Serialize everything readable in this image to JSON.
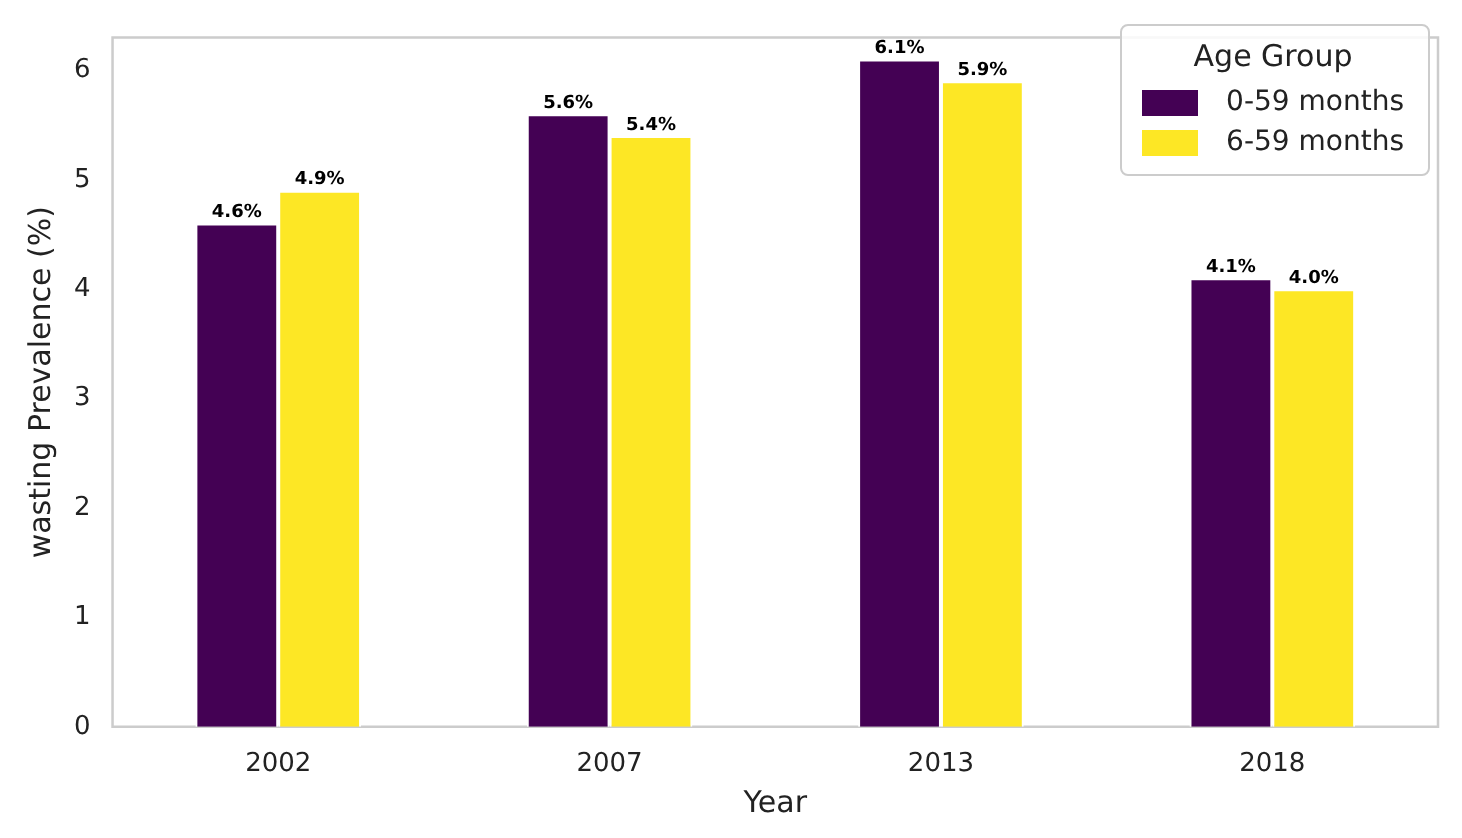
{
  "chart_data": {
    "type": "bar",
    "xlabel": "Year",
    "ylabel": "wasting Prevalence (%)",
    "legend_title": "Age Group",
    "categories": [
      "2002",
      "2007",
      "2013",
      "2018"
    ],
    "series": [
      {
        "name": "0-59 months",
        "color": "#440154",
        "values": [
          4.6,
          5.6,
          6.1,
          4.1
        ],
        "value_labels": [
          "4.6%",
          "5.6%",
          "6.1%",
          "4.1%"
        ]
      },
      {
        "name": "6-59 months",
        "color": "#fde725",
        "values": [
          4.9,
          5.4,
          5.9,
          4.0
        ],
        "value_labels": [
          "4.9%",
          "5.4%",
          "5.9%",
          "4.0%"
        ]
      }
    ],
    "ylim": [
      0,
      6.3
    ],
    "yticks": [
      0,
      1,
      2,
      3,
      4,
      5,
      6
    ],
    "grid": false,
    "legend": "top right"
  }
}
